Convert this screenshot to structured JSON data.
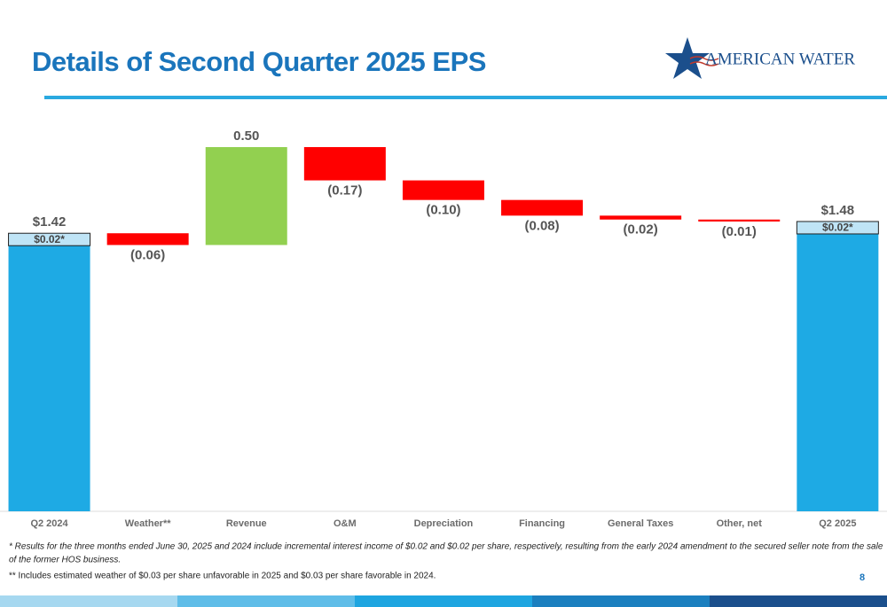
{
  "header": {
    "title": "Details of Second Quarter 2025 EPS",
    "logo": "AMERICAN WATER"
  },
  "chart_data": {
    "type": "waterfall",
    "categories": [
      "Q2 2024",
      "Weather**",
      "Revenue",
      "O&M",
      "Depreciation",
      "Financing",
      "General Taxes",
      "Other, net",
      "Q2 2025"
    ],
    "measure": [
      "total",
      "relative",
      "relative",
      "relative",
      "relative",
      "relative",
      "relative",
      "relative",
      "total"
    ],
    "values": [
      1.42,
      -0.06,
      0.5,
      -0.17,
      -0.1,
      -0.08,
      -0.02,
      -0.01,
      1.48
    ],
    "value_labels": [
      "$1.42",
      "(0.06)",
      "0.50",
      "(0.17)",
      "(0.10)",
      "(0.08)",
      "(0.02)",
      "(0.01)",
      "$1.48"
    ],
    "annotations": [
      "$0.02*",
      "$0.02*"
    ],
    "colors": {
      "total": "#1eaae4",
      "increase": "#92d050",
      "decrease": "#ff0000"
    }
  },
  "footnotes": [
    "* Results for the three months ended June 30, 2025 and 2024 include incremental interest income of $0.02 and $0.02 per share, respectively, resulting from the early 2024 amendment to the secured seller note from the sale",
    "of the former HOS business.",
    "** Includes estimated weather of $0.03 per share unfavorable in 2025 and $0.03 per share favorable in 2024."
  ],
  "page_number": "8"
}
